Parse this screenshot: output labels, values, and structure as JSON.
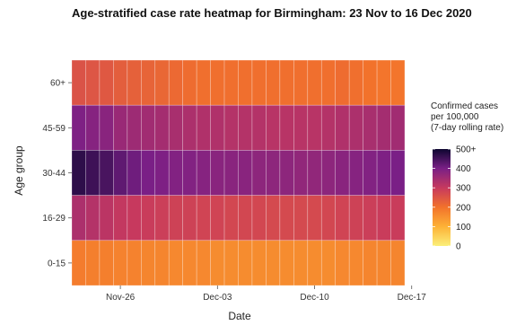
{
  "chart_data": {
    "type": "heatmap",
    "title": "Age-stratified case rate heatmap for Birmingham: 23 Nov to 16 Dec 2020",
    "xlabel": "Date",
    "ylabel": "Age group",
    "x_tick_labels": [
      "Nov-26",
      "Dec-03",
      "Dec-10",
      "Dec-17"
    ],
    "x_start_date": "2020-11-23",
    "x_end_date": "2020-12-16",
    "age_groups": [
      "60+",
      "45-59",
      "30-44",
      "16-29",
      "0-15"
    ],
    "dates": [
      "2020-11-23",
      "2020-11-24",
      "2020-11-25",
      "2020-11-26",
      "2020-11-27",
      "2020-11-28",
      "2020-11-29",
      "2020-11-30",
      "2020-12-01",
      "2020-12-02",
      "2020-12-03",
      "2020-12-04",
      "2020-12-05",
      "2020-12-06",
      "2020-12-07",
      "2020-12-08",
      "2020-12-09",
      "2020-12-10",
      "2020-12-11",
      "2020-12-12",
      "2020-12-13",
      "2020-12-14",
      "2020-12-15",
      "2020-12-16"
    ],
    "values": [
      [
        255,
        250,
        245,
        235,
        230,
        225,
        220,
        215,
        210,
        205,
        205,
        205,
        205,
        205,
        205,
        205,
        205,
        205,
        205,
        210,
        205,
        200,
        195,
        195
      ],
      [
        395,
        385,
        380,
        360,
        355,
        350,
        345,
        340,
        335,
        330,
        330,
        325,
        325,
        325,
        320,
        320,
        320,
        320,
        325,
        330,
        335,
        340,
        345,
        350
      ],
      [
        470,
        455,
        445,
        425,
        410,
        400,
        395,
        390,
        390,
        385,
        380,
        380,
        380,
        375,
        375,
        375,
        370,
        370,
        375,
        380,
        385,
        390,
        395,
        400
      ],
      [
        335,
        325,
        315,
        305,
        300,
        295,
        290,
        285,
        285,
        280,
        280,
        275,
        275,
        275,
        270,
        270,
        270,
        270,
        275,
        280,
        285,
        290,
        295,
        295
      ],
      [
        185,
        180,
        180,
        175,
        175,
        170,
        170,
        165,
        165,
        165,
        160,
        160,
        160,
        160,
        160,
        160,
        160,
        160,
        160,
        165,
        165,
        170,
        170,
        170
      ]
    ],
    "legend": {
      "title_lines": [
        "Confirmed cases",
        "per 100,000",
        "(7-day rolling rate)"
      ],
      "breaks": [
        "500+",
        "400",
        "300",
        "200",
        "100",
        "0"
      ],
      "break_values": [
        500,
        400,
        300,
        200,
        100,
        0
      ],
      "placement": "right",
      "colormap": "plasma-like (dark purple high, yellow low)"
    },
    "grid": true
  }
}
